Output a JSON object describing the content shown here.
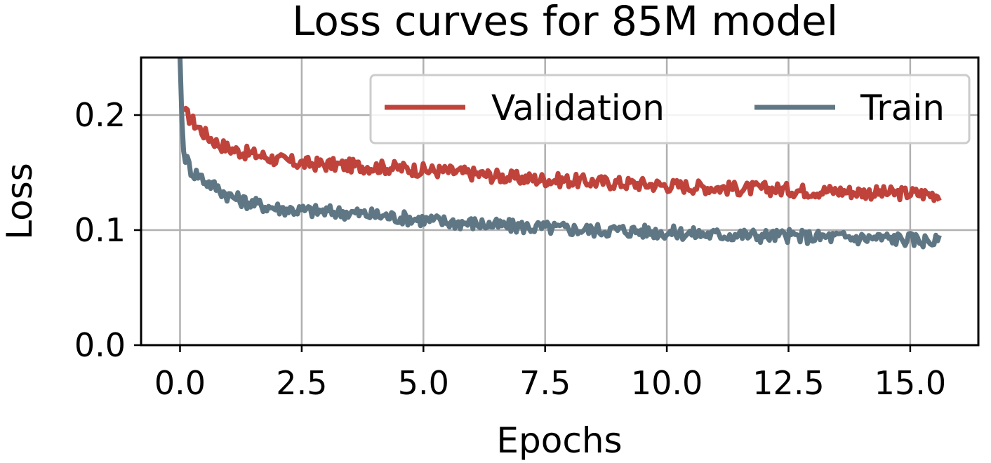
{
  "chart_data": {
    "type": "line",
    "title": "Loss curves for 85M model",
    "xlabel": "Epochs",
    "ylabel": "Loss",
    "xlim": [
      -0.8,
      16.4
    ],
    "ylim": [
      0.0,
      0.25
    ],
    "xticks": [
      0.0,
      2.5,
      5.0,
      7.5,
      10.0,
      12.5,
      15.0
    ],
    "xtick_labels": [
      "0.0",
      "2.5",
      "5.0",
      "7.5",
      "10.0",
      "12.5",
      "15.0"
    ],
    "yticks": [
      0.0,
      0.1,
      0.2
    ],
    "ytick_labels": [
      "0.0",
      "0.1",
      "0.2"
    ],
    "grid": true,
    "legend_position": "top-right",
    "series": [
      {
        "name": "Validation",
        "color": "#c0433b",
        "x": [
          0.08,
          0.25,
          0.5,
          0.75,
          1.0,
          1.25,
          1.5,
          1.75,
          2.0,
          2.5,
          3.0,
          3.5,
          4.0,
          4.5,
          5.0,
          5.5,
          6.0,
          6.5,
          7.0,
          7.5,
          8.0,
          8.5,
          9.0,
          9.5,
          10.0,
          10.5,
          11.0,
          11.5,
          12.0,
          12.5,
          13.0,
          13.5,
          14.0,
          14.5,
          15.0,
          15.6
        ],
        "values": [
          0.203,
          0.195,
          0.184,
          0.176,
          0.171,
          0.168,
          0.166,
          0.164,
          0.161,
          0.158,
          0.157,
          0.156,
          0.155,
          0.154,
          0.152,
          0.151,
          0.149,
          0.147,
          0.145,
          0.144,
          0.143,
          0.142,
          0.141,
          0.14,
          0.139,
          0.138,
          0.137,
          0.136,
          0.136,
          0.135,
          0.134,
          0.134,
          0.133,
          0.132,
          0.132,
          0.131
        ]
      },
      {
        "name": "Train",
        "color": "#5f7785",
        "x": [
          0.0,
          0.02,
          0.05,
          0.08,
          0.15,
          0.25,
          0.4,
          0.5,
          0.75,
          1.0,
          1.25,
          1.5,
          1.75,
          2.0,
          2.5,
          3.0,
          3.5,
          4.0,
          4.5,
          5.0,
          5.5,
          6.0,
          6.5,
          7.0,
          7.5,
          8.0,
          8.5,
          9.0,
          9.5,
          10.0,
          10.5,
          11.0,
          11.5,
          12.0,
          12.5,
          13.0,
          13.5,
          14.0,
          14.5,
          15.0,
          15.6
        ],
        "values": [
          0.25,
          0.22,
          0.18,
          0.166,
          0.16,
          0.15,
          0.148,
          0.143,
          0.137,
          0.13,
          0.126,
          0.123,
          0.121,
          0.119,
          0.117,
          0.116,
          0.115,
          0.113,
          0.111,
          0.109,
          0.107,
          0.106,
          0.104,
          0.103,
          0.102,
          0.101,
          0.1,
          0.1,
          0.099,
          0.098,
          0.097,
          0.096,
          0.096,
          0.095,
          0.095,
          0.094,
          0.094,
          0.093,
          0.093,
          0.092,
          0.09
        ]
      }
    ]
  }
}
